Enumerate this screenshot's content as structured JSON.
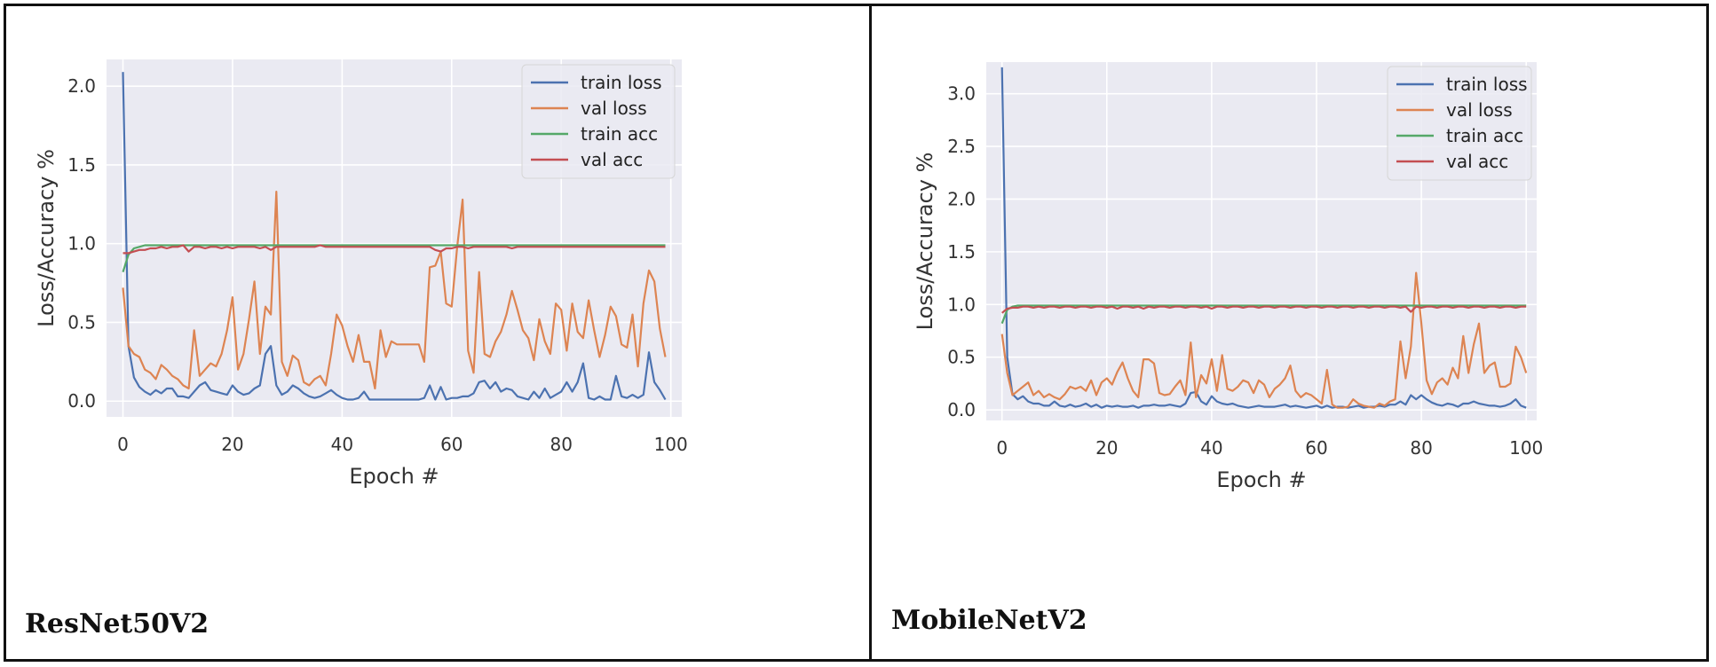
{
  "panels": [
    {
      "label": "ResNet50V2"
    },
    {
      "label": "MobileNetV2"
    }
  ],
  "chart_data": [
    {
      "type": "line",
      "title": "",
      "xlabel": "Epoch #",
      "ylabel": "Loss/Accuracy %",
      "xlim": [
        -3,
        102
      ],
      "ylim": [
        -0.1,
        2.17
      ],
      "xticks": [
        0,
        20,
        40,
        60,
        80,
        100
      ],
      "yticks": [
        0.0,
        0.5,
        1.0,
        1.5,
        2.0
      ],
      "ytick_labels": [
        "0.0",
        "0.5",
        "1.0",
        "1.5",
        "2.0"
      ],
      "grid": true,
      "legend_position": "top-right",
      "series": [
        {
          "name": "train loss",
          "color": "#4c72b0",
          "x_start": 0,
          "values": [
            2.09,
            0.35,
            0.15,
            0.09,
            0.06,
            0.04,
            0.07,
            0.05,
            0.08,
            0.08,
            0.03,
            0.03,
            0.02,
            0.06,
            0.1,
            0.12,
            0.07,
            0.06,
            0.05,
            0.04,
            0.1,
            0.06,
            0.04,
            0.05,
            0.08,
            0.1,
            0.3,
            0.35,
            0.1,
            0.04,
            0.06,
            0.1,
            0.08,
            0.05,
            0.03,
            0.02,
            0.03,
            0.05,
            0.07,
            0.04,
            0.02,
            0.01,
            0.01,
            0.02,
            0.06,
            0.01,
            0.01,
            0.01,
            0.01,
            0.01,
            0.01,
            0.01,
            0.01,
            0.01,
            0.01,
            0.02,
            0.1,
            0.01,
            0.09,
            0.01,
            0.02,
            0.02,
            0.03,
            0.03,
            0.05,
            0.12,
            0.13,
            0.08,
            0.12,
            0.06,
            0.08,
            0.07,
            0.03,
            0.02,
            0.01,
            0.06,
            0.02,
            0.08,
            0.02,
            0.04,
            0.06,
            0.12,
            0.06,
            0.12,
            0.24,
            0.02,
            0.01,
            0.03,
            0.01,
            0.01,
            0.16,
            0.03,
            0.02,
            0.04,
            0.02,
            0.04,
            0.31,
            0.12,
            0.07,
            0.01
          ]
        },
        {
          "name": "val loss",
          "color": "#dd8452",
          "x_start": 0,
          "values": [
            0.72,
            0.35,
            0.3,
            0.28,
            0.2,
            0.18,
            0.14,
            0.23,
            0.2,
            0.16,
            0.14,
            0.1,
            0.08,
            0.45,
            0.16,
            0.2,
            0.24,
            0.22,
            0.3,
            0.45,
            0.66,
            0.2,
            0.3,
            0.52,
            0.76,
            0.3,
            0.6,
            0.55,
            1.33,
            0.25,
            0.16,
            0.29,
            0.26,
            0.12,
            0.1,
            0.14,
            0.16,
            0.1,
            0.3,
            0.55,
            0.48,
            0.35,
            0.25,
            0.42,
            0.25,
            0.25,
            0.08,
            0.45,
            0.28,
            0.38,
            0.36,
            0.36,
            0.36,
            0.36,
            0.36,
            0.25,
            0.85,
            0.86,
            0.95,
            0.62,
            0.6,
            0.98,
            1.28,
            0.32,
            0.18,
            0.82,
            0.3,
            0.28,
            0.38,
            0.44,
            0.55,
            0.7,
            0.58,
            0.45,
            0.4,
            0.26,
            0.52,
            0.38,
            0.3,
            0.62,
            0.58,
            0.32,
            0.62,
            0.44,
            0.4,
            0.64,
            0.45,
            0.28,
            0.42,
            0.6,
            0.54,
            0.36,
            0.34,
            0.55,
            0.22,
            0.62,
            0.83,
            0.76,
            0.46,
            0.28
          ]
        },
        {
          "name": "train acc",
          "color": "#55a868",
          "x_start": 0,
          "values": [
            0.82,
            0.93,
            0.97,
            0.98,
            0.99,
            0.99,
            0.99,
            0.99,
            0.99,
            0.99,
            0.99,
            0.99,
            0.99,
            0.99,
            0.99,
            0.99,
            0.99,
            0.99,
            0.99,
            0.99,
            0.99,
            0.99,
            0.99,
            0.99,
            0.99,
            0.99,
            0.99,
            0.99,
            0.99,
            0.99,
            0.99,
            0.99,
            0.99,
            0.99,
            0.99,
            0.99,
            0.99,
            0.99,
            0.99,
            0.99,
            0.99,
            0.99,
            0.99,
            0.99,
            0.99,
            0.99,
            0.99,
            0.99,
            0.99,
            0.99,
            0.99,
            0.99,
            0.99,
            0.99,
            0.99,
            0.99,
            0.99,
            0.99,
            0.99,
            0.99,
            0.99,
            0.99,
            0.99,
            0.99,
            0.99,
            0.99,
            0.99,
            0.99,
            0.99,
            0.99,
            0.99,
            0.99,
            0.99,
            0.99,
            0.99,
            0.99,
            0.99,
            0.99,
            0.99,
            0.99,
            0.99,
            0.99,
            0.99,
            0.99,
            0.99,
            0.99,
            0.99,
            0.99,
            0.99,
            0.99,
            0.99,
            0.99,
            0.99,
            0.99,
            0.99,
            0.99,
            0.99,
            0.99,
            0.99,
            0.99
          ]
        },
        {
          "name": "val acc",
          "color": "#c44e52",
          "x_start": 0,
          "values": [
            0.94,
            0.94,
            0.95,
            0.96,
            0.96,
            0.97,
            0.97,
            0.98,
            0.97,
            0.98,
            0.98,
            0.99,
            0.95,
            0.98,
            0.98,
            0.97,
            0.98,
            0.98,
            0.97,
            0.98,
            0.97,
            0.98,
            0.98,
            0.98,
            0.98,
            0.97,
            0.98,
            0.96,
            0.98,
            0.98,
            0.98,
            0.98,
            0.98,
            0.98,
            0.98,
            0.98,
            0.99,
            0.98,
            0.98,
            0.98,
            0.98,
            0.98,
            0.98,
            0.98,
            0.98,
            0.98,
            0.98,
            0.98,
            0.98,
            0.98,
            0.98,
            0.98,
            0.98,
            0.98,
            0.98,
            0.98,
            0.98,
            0.96,
            0.95,
            0.97,
            0.97,
            0.98,
            0.98,
            0.97,
            0.98,
            0.98,
            0.98,
            0.98,
            0.98,
            0.98,
            0.98,
            0.97,
            0.98,
            0.98,
            0.98,
            0.98,
            0.98,
            0.98,
            0.98,
            0.98,
            0.98,
            0.98,
            0.98,
            0.98,
            0.98,
            0.98,
            0.98,
            0.98,
            0.98,
            0.98,
            0.98,
            0.98,
            0.98,
            0.98,
            0.98,
            0.98,
            0.98,
            0.98,
            0.98,
            0.98
          ]
        }
      ]
    },
    {
      "type": "line",
      "title": "",
      "xlabel": "Epoch #",
      "ylabel": "Loss/Accuracy %",
      "xlim": [
        -3,
        102
      ],
      "ylim": [
        -0.1,
        3.3
      ],
      "xticks": [
        0,
        20,
        40,
        60,
        80,
        100
      ],
      "yticks": [
        0.0,
        0.5,
        1.0,
        1.5,
        2.0,
        2.5,
        3.0
      ],
      "ytick_labels": [
        "0.0",
        "0.5",
        "1.0",
        "1.5",
        "2.0",
        "2.5",
        "3.0"
      ],
      "grid": true,
      "legend_position": "top-right",
      "series": [
        {
          "name": "train loss",
          "color": "#4c72b0",
          "x_start": 0,
          "values": [
            3.25,
            0.5,
            0.15,
            0.1,
            0.13,
            0.08,
            0.06,
            0.06,
            0.04,
            0.04,
            0.08,
            0.04,
            0.03,
            0.05,
            0.03,
            0.04,
            0.06,
            0.03,
            0.05,
            0.02,
            0.04,
            0.03,
            0.04,
            0.03,
            0.03,
            0.04,
            0.02,
            0.04,
            0.04,
            0.05,
            0.04,
            0.04,
            0.05,
            0.04,
            0.03,
            0.06,
            0.16,
            0.17,
            0.08,
            0.05,
            0.13,
            0.08,
            0.06,
            0.05,
            0.06,
            0.04,
            0.03,
            0.02,
            0.03,
            0.04,
            0.03,
            0.03,
            0.03,
            0.04,
            0.05,
            0.03,
            0.04,
            0.03,
            0.02,
            0.03,
            0.04,
            0.02,
            0.04,
            0.02,
            0.03,
            0.03,
            0.02,
            0.03,
            0.04,
            0.02,
            0.03,
            0.03,
            0.04,
            0.03,
            0.05,
            0.05,
            0.08,
            0.05,
            0.14,
            0.1,
            0.14,
            0.1,
            0.07,
            0.05,
            0.04,
            0.06,
            0.05,
            0.03,
            0.06,
            0.06,
            0.08,
            0.06,
            0.05,
            0.04,
            0.04,
            0.03,
            0.04,
            0.06,
            0.1,
            0.04,
            0.02
          ]
        },
        {
          "name": "val loss",
          "color": "#dd8452",
          "x_start": 0,
          "values": [
            0.72,
            0.35,
            0.14,
            0.18,
            0.22,
            0.26,
            0.14,
            0.18,
            0.12,
            0.15,
            0.12,
            0.1,
            0.15,
            0.22,
            0.2,
            0.22,
            0.18,
            0.28,
            0.14,
            0.26,
            0.3,
            0.24,
            0.36,
            0.45,
            0.3,
            0.18,
            0.12,
            0.48,
            0.48,
            0.44,
            0.16,
            0.14,
            0.15,
            0.22,
            0.28,
            0.14,
            0.64,
            0.12,
            0.33,
            0.25,
            0.48,
            0.18,
            0.52,
            0.2,
            0.18,
            0.22,
            0.28,
            0.26,
            0.16,
            0.28,
            0.24,
            0.12,
            0.2,
            0.24,
            0.3,
            0.42,
            0.18,
            0.12,
            0.16,
            0.14,
            0.1,
            0.06,
            0.38,
            0.05,
            0.02,
            0.02,
            0.03,
            0.1,
            0.06,
            0.04,
            0.03,
            0.02,
            0.06,
            0.04,
            0.08,
            0.1,
            0.65,
            0.3,
            0.6,
            1.3,
            0.82,
            0.28,
            0.15,
            0.26,
            0.3,
            0.24,
            0.4,
            0.3,
            0.7,
            0.35,
            0.62,
            0.82,
            0.35,
            0.42,
            0.45,
            0.22,
            0.22,
            0.25,
            0.6,
            0.5,
            0.35
          ]
        },
        {
          "name": "train acc",
          "color": "#55a868",
          "x_start": 0,
          "values": [
            0.82,
            0.95,
            0.98,
            0.99,
            0.99,
            0.99,
            0.99,
            0.99,
            0.99,
            0.99,
            0.99,
            0.99,
            0.99,
            0.99,
            0.99,
            0.99,
            0.99,
            0.99,
            0.99,
            0.99,
            0.99,
            0.99,
            0.99,
            0.99,
            0.99,
            0.99,
            0.99,
            0.99,
            0.99,
            0.99,
            0.99,
            0.99,
            0.99,
            0.99,
            0.99,
            0.99,
            0.99,
            0.99,
            0.99,
            0.99,
            0.99,
            0.99,
            0.99,
            0.99,
            0.99,
            0.99,
            0.99,
            0.99,
            0.99,
            0.99,
            0.99,
            0.99,
            0.99,
            0.99,
            0.99,
            0.99,
            0.99,
            0.99,
            0.99,
            0.99,
            0.99,
            0.99,
            0.99,
            0.99,
            0.99,
            0.99,
            0.99,
            0.99,
            0.99,
            0.99,
            0.99,
            0.99,
            0.99,
            0.99,
            0.99,
            0.99,
            0.99,
            0.99,
            0.99,
            0.99,
            0.99,
            0.99,
            0.99,
            0.99,
            0.99,
            0.99,
            0.99,
            0.99,
            0.99,
            0.99,
            0.99,
            0.99,
            0.99,
            0.99,
            0.99,
            0.99,
            0.99,
            0.99,
            0.99,
            0.99,
            0.99
          ]
        },
        {
          "name": "val acc",
          "color": "#c44e52",
          "x_start": 0,
          "values": [
            0.92,
            0.96,
            0.97,
            0.97,
            0.98,
            0.98,
            0.97,
            0.98,
            0.97,
            0.98,
            0.98,
            0.97,
            0.98,
            0.98,
            0.97,
            0.98,
            0.98,
            0.97,
            0.98,
            0.98,
            0.97,
            0.98,
            0.96,
            0.98,
            0.98,
            0.97,
            0.98,
            0.96,
            0.98,
            0.97,
            0.98,
            0.98,
            0.97,
            0.98,
            0.98,
            0.97,
            0.98,
            0.98,
            0.97,
            0.98,
            0.96,
            0.98,
            0.98,
            0.97,
            0.98,
            0.98,
            0.97,
            0.98,
            0.98,
            0.97,
            0.98,
            0.98,
            0.97,
            0.98,
            0.98,
            0.97,
            0.98,
            0.98,
            0.97,
            0.98,
            0.98,
            0.97,
            0.98,
            0.98,
            0.97,
            0.98,
            0.98,
            0.97,
            0.98,
            0.98,
            0.97,
            0.98,
            0.98,
            0.97,
            0.98,
            0.98,
            0.97,
            0.98,
            0.93,
            0.98,
            0.97,
            0.98,
            0.98,
            0.97,
            0.98,
            0.98,
            0.97,
            0.98,
            0.98,
            0.97,
            0.98,
            0.98,
            0.97,
            0.98,
            0.98,
            0.97,
            0.98,
            0.98,
            0.97,
            0.98,
            0.98
          ]
        }
      ]
    }
  ]
}
